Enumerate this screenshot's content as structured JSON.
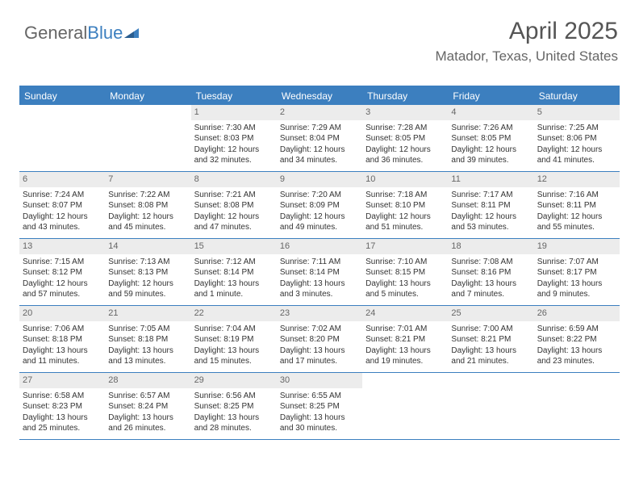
{
  "logo": {
    "text1": "General",
    "text2": "Blue"
  },
  "title": "April 2025",
  "location": "Matador, Texas, United States",
  "colors": {
    "accent": "#3c7fbf",
    "daybar": "#ececec",
    "text": "#333333",
    "muted": "#666666",
    "white": "#ffffff"
  },
  "dayNames": [
    "Sunday",
    "Monday",
    "Tuesday",
    "Wednesday",
    "Thursday",
    "Friday",
    "Saturday"
  ],
  "weeks": [
    [
      null,
      null,
      {
        "n": "1",
        "sr": "Sunrise: 7:30 AM",
        "ss": "Sunset: 8:03 PM",
        "dl1": "Daylight: 12 hours",
        "dl2": "and 32 minutes."
      },
      {
        "n": "2",
        "sr": "Sunrise: 7:29 AM",
        "ss": "Sunset: 8:04 PM",
        "dl1": "Daylight: 12 hours",
        "dl2": "and 34 minutes."
      },
      {
        "n": "3",
        "sr": "Sunrise: 7:28 AM",
        "ss": "Sunset: 8:05 PM",
        "dl1": "Daylight: 12 hours",
        "dl2": "and 36 minutes."
      },
      {
        "n": "4",
        "sr": "Sunrise: 7:26 AM",
        "ss": "Sunset: 8:05 PM",
        "dl1": "Daylight: 12 hours",
        "dl2": "and 39 minutes."
      },
      {
        "n": "5",
        "sr": "Sunrise: 7:25 AM",
        "ss": "Sunset: 8:06 PM",
        "dl1": "Daylight: 12 hours",
        "dl2": "and 41 minutes."
      }
    ],
    [
      {
        "n": "6",
        "sr": "Sunrise: 7:24 AM",
        "ss": "Sunset: 8:07 PM",
        "dl1": "Daylight: 12 hours",
        "dl2": "and 43 minutes."
      },
      {
        "n": "7",
        "sr": "Sunrise: 7:22 AM",
        "ss": "Sunset: 8:08 PM",
        "dl1": "Daylight: 12 hours",
        "dl2": "and 45 minutes."
      },
      {
        "n": "8",
        "sr": "Sunrise: 7:21 AM",
        "ss": "Sunset: 8:08 PM",
        "dl1": "Daylight: 12 hours",
        "dl2": "and 47 minutes."
      },
      {
        "n": "9",
        "sr": "Sunrise: 7:20 AM",
        "ss": "Sunset: 8:09 PM",
        "dl1": "Daylight: 12 hours",
        "dl2": "and 49 minutes."
      },
      {
        "n": "10",
        "sr": "Sunrise: 7:18 AM",
        "ss": "Sunset: 8:10 PM",
        "dl1": "Daylight: 12 hours",
        "dl2": "and 51 minutes."
      },
      {
        "n": "11",
        "sr": "Sunrise: 7:17 AM",
        "ss": "Sunset: 8:11 PM",
        "dl1": "Daylight: 12 hours",
        "dl2": "and 53 minutes."
      },
      {
        "n": "12",
        "sr": "Sunrise: 7:16 AM",
        "ss": "Sunset: 8:11 PM",
        "dl1": "Daylight: 12 hours",
        "dl2": "and 55 minutes."
      }
    ],
    [
      {
        "n": "13",
        "sr": "Sunrise: 7:15 AM",
        "ss": "Sunset: 8:12 PM",
        "dl1": "Daylight: 12 hours",
        "dl2": "and 57 minutes."
      },
      {
        "n": "14",
        "sr": "Sunrise: 7:13 AM",
        "ss": "Sunset: 8:13 PM",
        "dl1": "Daylight: 12 hours",
        "dl2": "and 59 minutes."
      },
      {
        "n": "15",
        "sr": "Sunrise: 7:12 AM",
        "ss": "Sunset: 8:14 PM",
        "dl1": "Daylight: 13 hours",
        "dl2": "and 1 minute."
      },
      {
        "n": "16",
        "sr": "Sunrise: 7:11 AM",
        "ss": "Sunset: 8:14 PM",
        "dl1": "Daylight: 13 hours",
        "dl2": "and 3 minutes."
      },
      {
        "n": "17",
        "sr": "Sunrise: 7:10 AM",
        "ss": "Sunset: 8:15 PM",
        "dl1": "Daylight: 13 hours",
        "dl2": "and 5 minutes."
      },
      {
        "n": "18",
        "sr": "Sunrise: 7:08 AM",
        "ss": "Sunset: 8:16 PM",
        "dl1": "Daylight: 13 hours",
        "dl2": "and 7 minutes."
      },
      {
        "n": "19",
        "sr": "Sunrise: 7:07 AM",
        "ss": "Sunset: 8:17 PM",
        "dl1": "Daylight: 13 hours",
        "dl2": "and 9 minutes."
      }
    ],
    [
      {
        "n": "20",
        "sr": "Sunrise: 7:06 AM",
        "ss": "Sunset: 8:18 PM",
        "dl1": "Daylight: 13 hours",
        "dl2": "and 11 minutes."
      },
      {
        "n": "21",
        "sr": "Sunrise: 7:05 AM",
        "ss": "Sunset: 8:18 PM",
        "dl1": "Daylight: 13 hours",
        "dl2": "and 13 minutes."
      },
      {
        "n": "22",
        "sr": "Sunrise: 7:04 AM",
        "ss": "Sunset: 8:19 PM",
        "dl1": "Daylight: 13 hours",
        "dl2": "and 15 minutes."
      },
      {
        "n": "23",
        "sr": "Sunrise: 7:02 AM",
        "ss": "Sunset: 8:20 PM",
        "dl1": "Daylight: 13 hours",
        "dl2": "and 17 minutes."
      },
      {
        "n": "24",
        "sr": "Sunrise: 7:01 AM",
        "ss": "Sunset: 8:21 PM",
        "dl1": "Daylight: 13 hours",
        "dl2": "and 19 minutes."
      },
      {
        "n": "25",
        "sr": "Sunrise: 7:00 AM",
        "ss": "Sunset: 8:21 PM",
        "dl1": "Daylight: 13 hours",
        "dl2": "and 21 minutes."
      },
      {
        "n": "26",
        "sr": "Sunrise: 6:59 AM",
        "ss": "Sunset: 8:22 PM",
        "dl1": "Daylight: 13 hours",
        "dl2": "and 23 minutes."
      }
    ],
    [
      {
        "n": "27",
        "sr": "Sunrise: 6:58 AM",
        "ss": "Sunset: 8:23 PM",
        "dl1": "Daylight: 13 hours",
        "dl2": "and 25 minutes."
      },
      {
        "n": "28",
        "sr": "Sunrise: 6:57 AM",
        "ss": "Sunset: 8:24 PM",
        "dl1": "Daylight: 13 hours",
        "dl2": "and 26 minutes."
      },
      {
        "n": "29",
        "sr": "Sunrise: 6:56 AM",
        "ss": "Sunset: 8:25 PM",
        "dl1": "Daylight: 13 hours",
        "dl2": "and 28 minutes."
      },
      {
        "n": "30",
        "sr": "Sunrise: 6:55 AM",
        "ss": "Sunset: 8:25 PM",
        "dl1": "Daylight: 13 hours",
        "dl2": "and 30 minutes."
      },
      null,
      null,
      null
    ]
  ]
}
